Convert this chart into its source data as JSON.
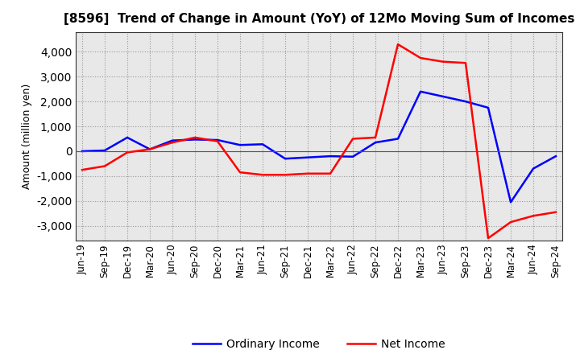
{
  "title": "[8596]  Trend of Change in Amount (YoY) of 12Mo Moving Sum of Incomes",
  "ylabel": "Amount (million yen)",
  "x_labels": [
    "Jun-19",
    "Sep-19",
    "Dec-19",
    "Mar-20",
    "Jun-20",
    "Sep-20",
    "Dec-20",
    "Mar-21",
    "Jun-21",
    "Sep-21",
    "Dec-21",
    "Mar-22",
    "Jun-22",
    "Sep-22",
    "Dec-22",
    "Mar-23",
    "Jun-23",
    "Sep-23",
    "Dec-23",
    "Mar-24",
    "Jun-24",
    "Sep-24"
  ],
  "ordinary_income": [
    0,
    30,
    550,
    80,
    430,
    470,
    450,
    250,
    280,
    -300,
    -250,
    -200,
    -220,
    350,
    500,
    2400,
    2200,
    2000,
    1750,
    -2050,
    -700,
    -200
  ],
  "net_income": [
    -750,
    -600,
    -50,
    80,
    350,
    550,
    400,
    -850,
    -950,
    -950,
    -900,
    -900,
    500,
    550,
    4300,
    3750,
    3600,
    3550,
    -3500,
    -2850,
    -2600,
    -2450
  ],
  "ordinary_color": "#0000ff",
  "net_color": "#ff0000",
  "bg_color": "#ffffff",
  "plot_bg_color": "#e8e8e8",
  "grid_color": "#999999",
  "ylim": [
    -3600,
    4800
  ],
  "yticks": [
    -3000,
    -2000,
    -1000,
    0,
    1000,
    2000,
    3000,
    4000
  ],
  "legend_ordinary": "Ordinary Income",
  "legend_net": "Net Income",
  "linewidth": 1.8,
  "title_fontsize": 11,
  "label_fontsize": 9,
  "tick_fontsize": 8.5,
  "legend_fontsize": 10
}
